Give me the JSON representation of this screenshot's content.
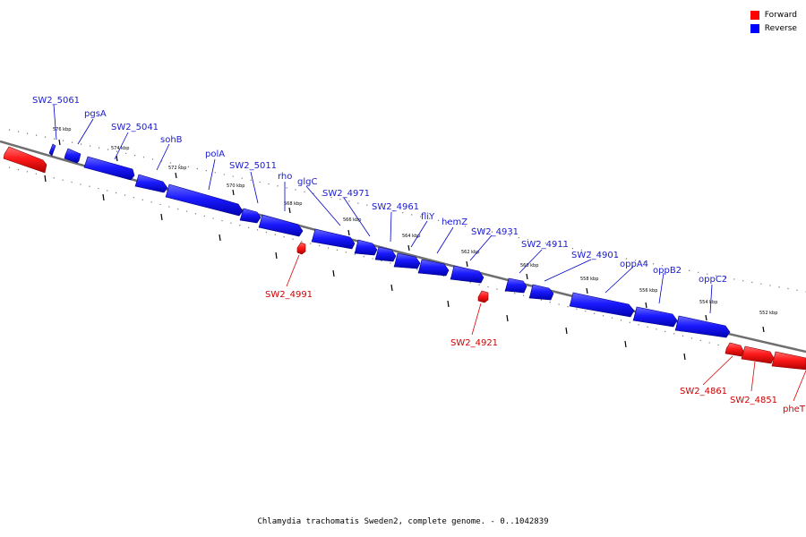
{
  "legend": {
    "forward": {
      "label": "Forward",
      "color": "#ff0000"
    },
    "reverse": {
      "label": "Reverse",
      "color": "#0000ff"
    }
  },
  "caption": "Chlamydia trachomatis Sweden2, complete genome. - 0..1042839",
  "ticks": [
    "576 kbp",
    "574 kbp",
    "572 kbp",
    "570 kbp",
    "568 kbp",
    "566 kbp",
    "564 kbp",
    "562 kbp",
    "560 kbp",
    "558 kbp",
    "556 kbp",
    "554 kbp",
    "552 kbp"
  ],
  "genes": {
    "reverse": [
      "SW2_5061",
      "pgsA",
      "SW2_5041",
      "sohB",
      "polA",
      "SW2_5011",
      "rho",
      "glgC",
      "SW2_4971",
      "SW2_4961",
      "fliY",
      "hemZ",
      "SW2_4931",
      "SW2_4911",
      "SW2_4901",
      "oppA4",
      "oppB2",
      "oppC2"
    ],
    "forward": [
      "SW2_4991",
      "SW2_4921",
      "SW2_4861",
      "SW2_4851",
      "pheT"
    ]
  }
}
